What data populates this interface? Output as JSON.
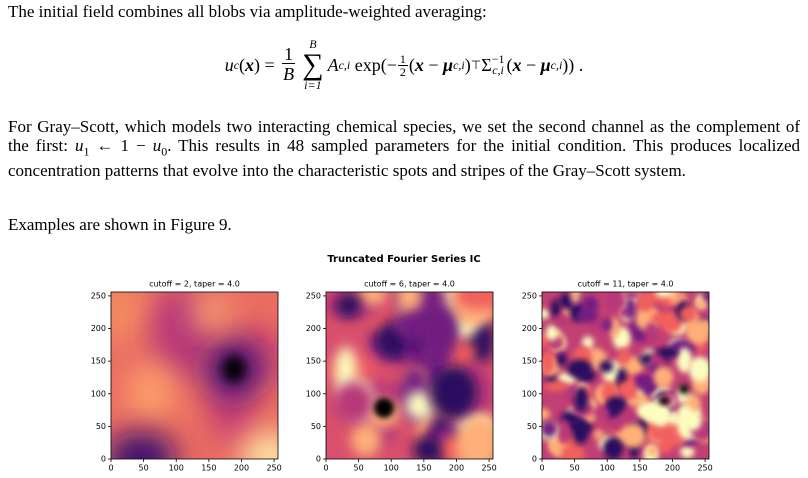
{
  "intro": "The initial field combines all blobs via amplitude-weighted averaging:",
  "equation": [
    "u",
    "c",
    "(",
    "x",
    ") =",
    "1",
    "B",
    "B",
    "∑",
    "i=1",
    "A",
    "c,i",
    "exp",
    "(−",
    "1",
    "2",
    "(",
    "x",
    "−",
    "μ",
    "c,i",
    ")",
    "⊤",
    "Σ",
    "−1",
    "c,i",
    "(",
    "x",
    "−",
    "μ",
    "c,i",
    "))",
    "."
  ],
  "paragraph": [
    "For Gray–Scott, which models two interacting chemical species, we set the second channel as the complement of the first: ",
    "u",
    "1",
    " ← 1 − ",
    "u",
    "0",
    ". This results in 48 sampled parameters for the initial condition. This produces localized concentration patterns that evolve into the characteristic spots and stripes of the Gray–Scott system."
  ],
  "examples": "Examples are shown in Figure 9.",
  "figure": {
    "title": "Truncated Fourier Series IC",
    "panels": [
      {
        "title": "cutoff = 2, taper = 4.0",
        "xlim": [
          0,
          256
        ],
        "ylim": [
          0,
          256
        ],
        "xticks": [
          0,
          50,
          100,
          150,
          200,
          250
        ],
        "yticks": [
          0,
          50,
          100,
          150,
          200,
          250
        ]
      },
      {
        "title": "cutoff = 6, taper = 4.0",
        "xlim": [
          0,
          256
        ],
        "ylim": [
          0,
          256
        ],
        "xticks": [
          0,
          50,
          100,
          150,
          200,
          250
        ],
        "yticks": [
          0,
          50,
          100,
          150,
          200,
          250
        ]
      },
      {
        "title": "cutoff = 11, taper = 4.0",
        "xlim": [
          0,
          256
        ],
        "ylim": [
          0,
          256
        ],
        "xticks": [
          0,
          50,
          100,
          150,
          200,
          250
        ],
        "yticks": [
          0,
          50,
          100,
          150,
          200,
          250
        ]
      }
    ]
  }
}
